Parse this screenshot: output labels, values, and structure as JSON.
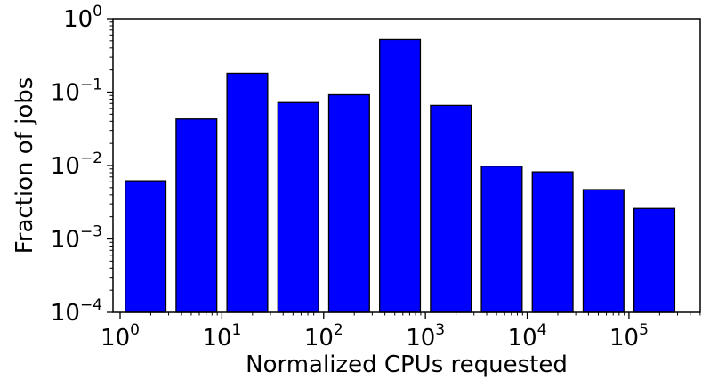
{
  "chart_data": {
    "type": "bar",
    "title": "",
    "xlabel": "Normalized CPUs requested",
    "ylabel": "Fraction of jobs",
    "x_scale": "log",
    "y_scale": "log",
    "ylim": [
      0.0001,
      1
    ],
    "xlim_log10": [
      -0.07,
      5.7
    ],
    "bar_color": "#0000ff",
    "edge_color": "#000000",
    "grid": false,
    "legend": "none",
    "x_ticks": [
      {
        "base": "10",
        "exp": "0",
        "log10": 0
      },
      {
        "base": "10",
        "exp": "1",
        "log10": 1
      },
      {
        "base": "10",
        "exp": "2",
        "log10": 2
      },
      {
        "base": "10",
        "exp": "3",
        "log10": 3
      },
      {
        "base": "10",
        "exp": "4",
        "log10": 4
      },
      {
        "base": "10",
        "exp": "5",
        "log10": 5
      }
    ],
    "y_ticks": [
      {
        "base": "10",
        "exp": "0",
        "log10": 0
      },
      {
        "base": "10",
        "exp": "−1",
        "log10": -1
      },
      {
        "base": "10",
        "exp": "−2",
        "log10": -2
      },
      {
        "base": "10",
        "exp": "−3",
        "log10": -3
      },
      {
        "base": "10",
        "exp": "−4",
        "log10": -4
      }
    ],
    "bars": [
      {
        "center_log10": 0.25,
        "value": 0.0062
      },
      {
        "center_log10": 0.75,
        "value": 0.043
      },
      {
        "center_log10": 1.25,
        "value": 0.18
      },
      {
        "center_log10": 1.75,
        "value": 0.072
      },
      {
        "center_log10": 2.25,
        "value": 0.092
      },
      {
        "center_log10": 2.75,
        "value": 0.52
      },
      {
        "center_log10": 3.25,
        "value": 0.066
      },
      {
        "center_log10": 3.75,
        "value": 0.0098
      },
      {
        "center_log10": 4.25,
        "value": 0.0082
      },
      {
        "center_log10": 4.75,
        "value": 0.0047
      },
      {
        "center_log10": 5.25,
        "value": 0.0026
      }
    ],
    "bar_width_log10": 0.4
  }
}
